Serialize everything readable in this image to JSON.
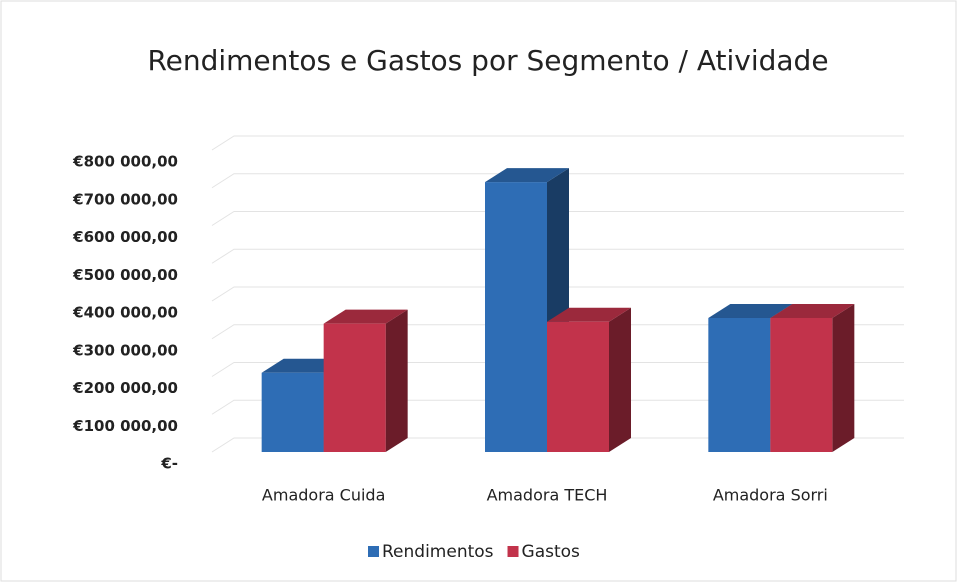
{
  "chart_data": {
    "type": "bar3d",
    "title": "Rendimentos e Gastos por Segmento / Atividade",
    "categories": [
      "Amadora Cuida",
      "Amadora TECH",
      "Amadora Sorri"
    ],
    "series": [
      {
        "name": "Rendimentos",
        "color": "#2e6db5",
        "values": [
          210000,
          715000,
          355000
        ]
      },
      {
        "name": "Gastos",
        "color": "#c2334b",
        "values": [
          340000,
          345000,
          355000
        ]
      }
    ],
    "ylim": [
      0,
      800000
    ],
    "yticks": [
      {
        "value": 0,
        "label": "€-"
      },
      {
        "value": 100000,
        "label": "€100 000,00"
      },
      {
        "value": 200000,
        "label": "€200 000,00"
      },
      {
        "value": 300000,
        "label": "€300 000,00"
      },
      {
        "value": 400000,
        "label": "€400 000,00"
      },
      {
        "value": 500000,
        "label": "€500 000,00"
      },
      {
        "value": 600000,
        "label": "€600 000,00"
      },
      {
        "value": 700000,
        "label": "€700 000,00"
      },
      {
        "value": 800000,
        "label": "€800 000,00"
      }
    ],
    "grid": true,
    "legend": "bottom"
  }
}
